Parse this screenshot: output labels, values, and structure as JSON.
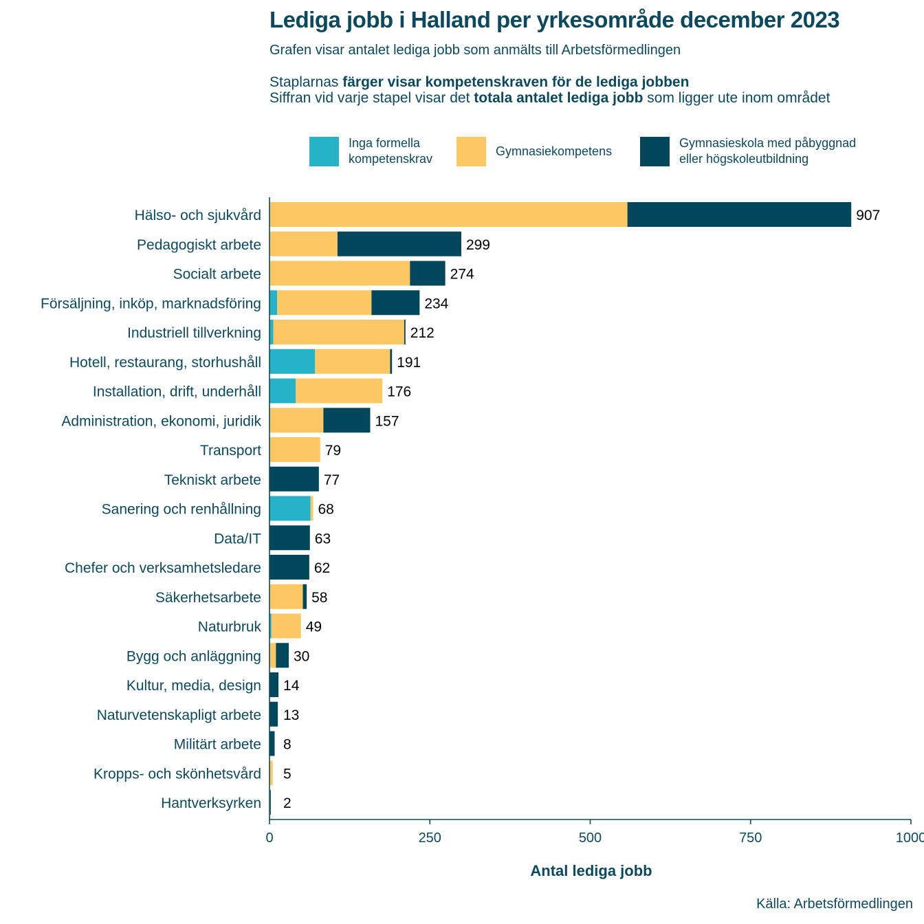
{
  "title": "Lediga jobb i Halland per yrkesområde december 2023",
  "subtitle": "Grafen visar antalet lediga jobb som anmälts till Arbetsförmedlingen",
  "desc1": {
    "pre": "Staplarnas ",
    "bold": "färger visar kompetenskraven för de lediga jobben"
  },
  "desc2": {
    "pre": "Siffran vid varje stapel visar det ",
    "bold": "totala antalet lediga jobb",
    "post": " som ligger ute inom området"
  },
  "source": "Källa: Arbetsförmedlingen",
  "legend": [
    {
      "label_lines": [
        "Inga formella",
        "kompetenskrav"
      ],
      "color": "#27b3c7"
    },
    {
      "label_lines": [
        "Gymnasiekompetens"
      ],
      "color": "#fdc864"
    },
    {
      "label_lines": [
        "Gymnasieskola med påbyggnad",
        "eller högskoleutbildning"
      ],
      "color": "#03475c"
    }
  ],
  "chart_data": {
    "type": "bar",
    "orientation": "horizontal",
    "stacked": true,
    "xlabel": "Antal lediga jobb",
    "xlim": [
      0,
      1000
    ],
    "xticks": [
      0,
      250,
      500,
      750,
      1000
    ],
    "grid": false,
    "legend_position": "top",
    "categories": [
      "Hälso- och sjukvård",
      "Pedagogiskt arbete",
      "Socialt arbete",
      "Försäljning, inköp, marknadsföring",
      "Industriell tillverkning",
      "Hotell, restaurang, storhushåll",
      "Installation, drift, underhåll",
      "Administration, ekonomi, juridik",
      "Transport",
      "Tekniskt arbete",
      "Sanering och renhållning",
      "Data/IT",
      "Chefer och verksamhetsledare",
      "Säkerhetsarbete",
      "Naturbruk",
      "Bygg och anläggning",
      "Kultur, media, design",
      "Naturvetenskapligt arbete",
      "Militärt arbete",
      "Kropps- och skönhetsvård",
      "Hantverksyrken"
    ],
    "series": [
      {
        "name": "Inga formella kompetenskrav",
        "color": "#27b3c7",
        "values": [
          0,
          0,
          0,
          12,
          6,
          71,
          41,
          0,
          0,
          0,
          64,
          0,
          0,
          0,
          3,
          0,
          0,
          0,
          0,
          0,
          0
        ]
      },
      {
        "name": "Gymnasiekompetens",
        "color": "#fdc864",
        "values": [
          558,
          106,
          219,
          147,
          204,
          117,
          135,
          84,
          79,
          0,
          4,
          0,
          0,
          52,
          46,
          10,
          0,
          0,
          0,
          5,
          1
        ]
      },
      {
        "name": "Gymnasieskola med påbyggnad eller högskoleutbildning",
        "color": "#03475c",
        "values": [
          349,
          193,
          55,
          75,
          2,
          3,
          0,
          73,
          0,
          77,
          0,
          63,
          62,
          6,
          0,
          20,
          14,
          13,
          8,
          0,
          1
        ]
      }
    ],
    "totals": [
      907,
      299,
      274,
      234,
      212,
      191,
      176,
      157,
      79,
      77,
      68,
      63,
      62,
      58,
      49,
      30,
      14,
      13,
      8,
      5,
      2
    ]
  }
}
